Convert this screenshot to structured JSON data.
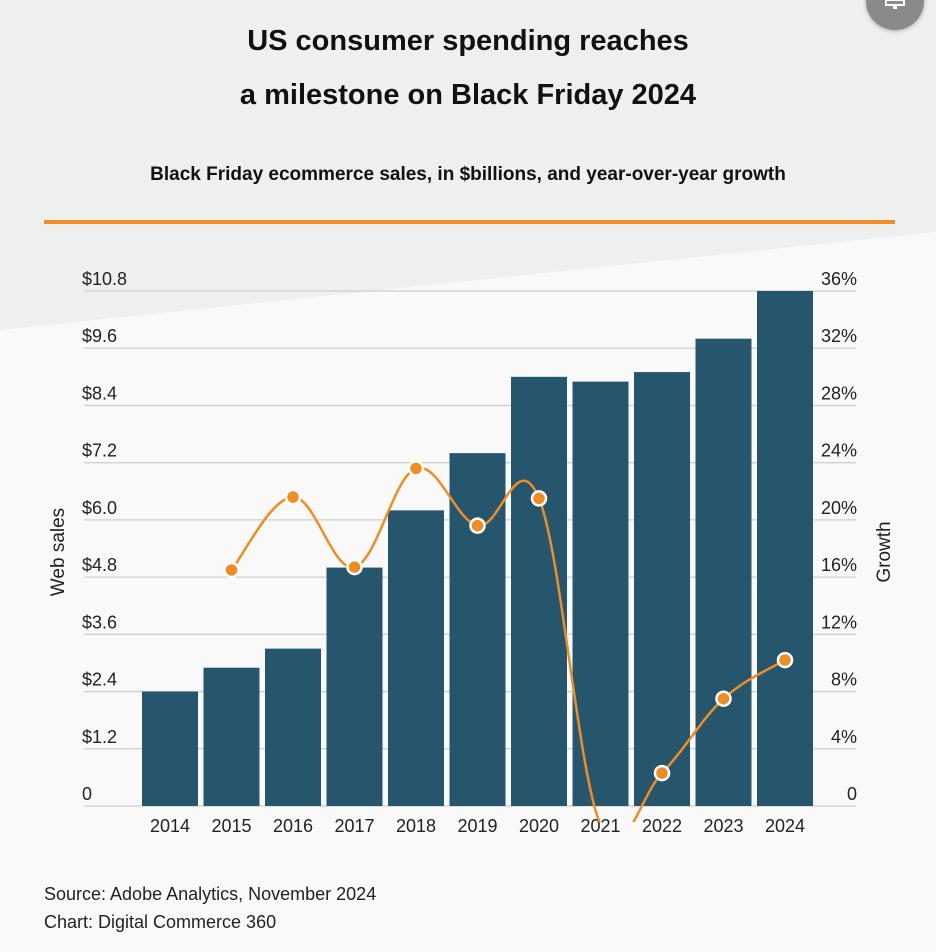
{
  "header": {
    "title_lines": [
      "US consumer spending reaches",
      "a milestone on Black Friday 2024"
    ],
    "subtitle": "Black Friday ecommerce sales, in $billions, and year-over-year growth"
  },
  "footer": {
    "source": "Source: Adobe Analytics, November 2024",
    "credit": "Chart: Digital Commerce 360"
  },
  "colors": {
    "bar": "#26566e",
    "line": "#ef8d22",
    "accent_rule": "#ef8d22",
    "grid": "#cfcfcf"
  },
  "icons": {
    "corner_button": "monitor-icon"
  },
  "chart_data": {
    "type": "bar",
    "categories": [
      "2014",
      "2015",
      "2016",
      "2017",
      "2018",
      "2019",
      "2020",
      "2021",
      "2022",
      "2023",
      "2024"
    ],
    "series": [
      {
        "values": [
          2.4,
          2.9,
          3.3,
          5.0,
          6.2,
          7.4,
          9.0,
          8.9,
          9.1,
          9.8,
          10.8
        ],
        "axis": "left"
      },
      {
        "values": [
          null,
          16.5,
          21.6,
          16.7,
          23.6,
          19.6,
          21.5,
          -1.3,
          2.3,
          7.5,
          10.2
        ],
        "axis": "right",
        "type": "line"
      }
    ],
    "ylabel": "Web sales",
    "y2label": "Growth",
    "ylim": [
      0,
      10.8
    ],
    "y2lim": [
      0,
      36
    ],
    "yticks": [
      "0",
      "$1.2",
      "$2.4",
      "$3.6",
      "$4.8",
      "$6.0",
      "$7.2",
      "$8.4",
      "$9.6",
      "$10.8"
    ],
    "y2ticks": [
      "0",
      "4%",
      "8%",
      "12%",
      "16%",
      "20%",
      "24%",
      "28%",
      "32%",
      "36%"
    ],
    "grid": true
  }
}
